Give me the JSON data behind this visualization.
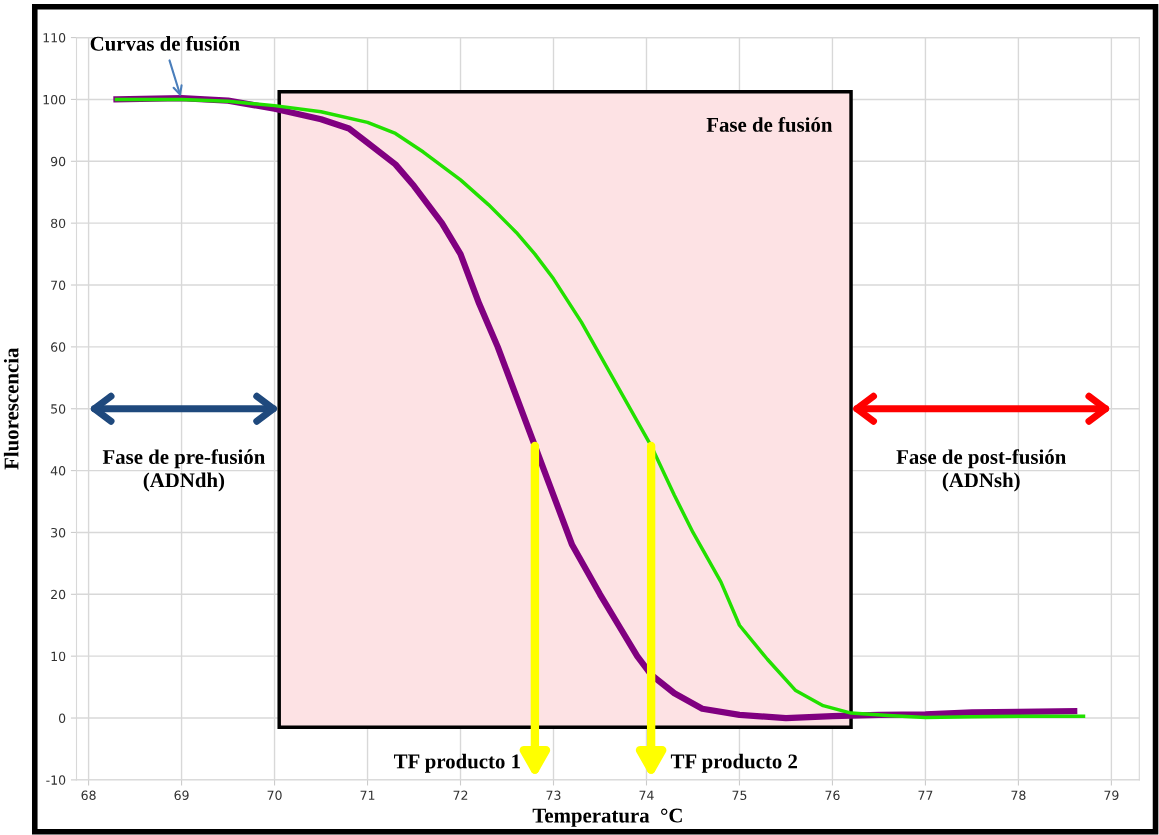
{
  "chart_data": {
    "type": "line",
    "xlabel": "Temperatura  °C",
    "ylabel": "Fluorescencia",
    "xlim": [
      67.87,
      79.3
    ],
    "ylim": [
      -10,
      110
    ],
    "xticks": [
      68,
      69,
      70,
      71,
      72,
      73,
      74,
      75,
      76,
      77,
      78,
      79
    ],
    "yticks": [
      -10,
      0,
      10,
      20,
      30,
      40,
      50,
      60,
      70,
      80,
      90,
      100,
      110
    ],
    "grid": true,
    "marker": "none",
    "line_style": "solid",
    "series": [
      {
        "color": "#800080",
        "x": [
          68.3,
          69,
          69.5,
          70,
          70.5,
          70.8,
          71,
          71.3,
          71.5,
          71.8,
          72,
          72.2,
          72.4,
          72.6,
          72.8,
          73,
          73.2,
          73.5,
          73.7,
          73.9,
          74.05,
          74.3,
          74.6,
          75,
          75.5,
          76,
          76.5,
          77,
          77.5,
          78,
          78.6
        ],
        "values": [
          100,
          100.2,
          99.8,
          98.5,
          96.8,
          95.3,
          93,
          89.5,
          86,
          80,
          75,
          67,
          60,
          52,
          44,
          36,
          28,
          20,
          15,
          10,
          7,
          4,
          1.5,
          0.5,
          0,
          0.3,
          0.5,
          0.6,
          0.9,
          1,
          1.1
        ]
      },
      {
        "color": "#22e000",
        "x": [
          68.3,
          69,
          69.5,
          70,
          70.5,
          71,
          71.3,
          71.6,
          72,
          72.3,
          72.6,
          72.8,
          73,
          73.3,
          73.6,
          73.9,
          74.05,
          74.3,
          74.5,
          74.8,
          75,
          75.3,
          75.6,
          75.9,
          76.2,
          76.6,
          77,
          77.5,
          78,
          78.7
        ],
        "values": [
          100,
          100,
          99.7,
          99,
          98,
          96.3,
          94.5,
          91.5,
          87,
          83,
          78.5,
          75,
          71,
          64,
          56,
          48,
          44,
          36,
          30,
          22,
          15,
          9.5,
          4.5,
          2,
          0.8,
          0.4,
          0.1,
          0.2,
          0.3,
          0.3
        ]
      }
    ],
    "bands": [
      {
        "axis": "x",
        "from": 70.05,
        "to": 76.2,
        "label": "Fase de fusión",
        "color": "#fde2e4"
      }
    ],
    "annotations": [
      {
        "text": "Curvas de fusión",
        "x": 69,
        "y": 100
      },
      "Fase de pre-fusión\n(ADNdh)",
      "Fase de post-fusión\n(ADNsh)",
      {
        "text": "TF producto 1",
        "x": 72.8,
        "y": 44
      },
      {
        "text": "TF producto 2",
        "x": 74.05,
        "y": 44
      }
    ]
  }
}
